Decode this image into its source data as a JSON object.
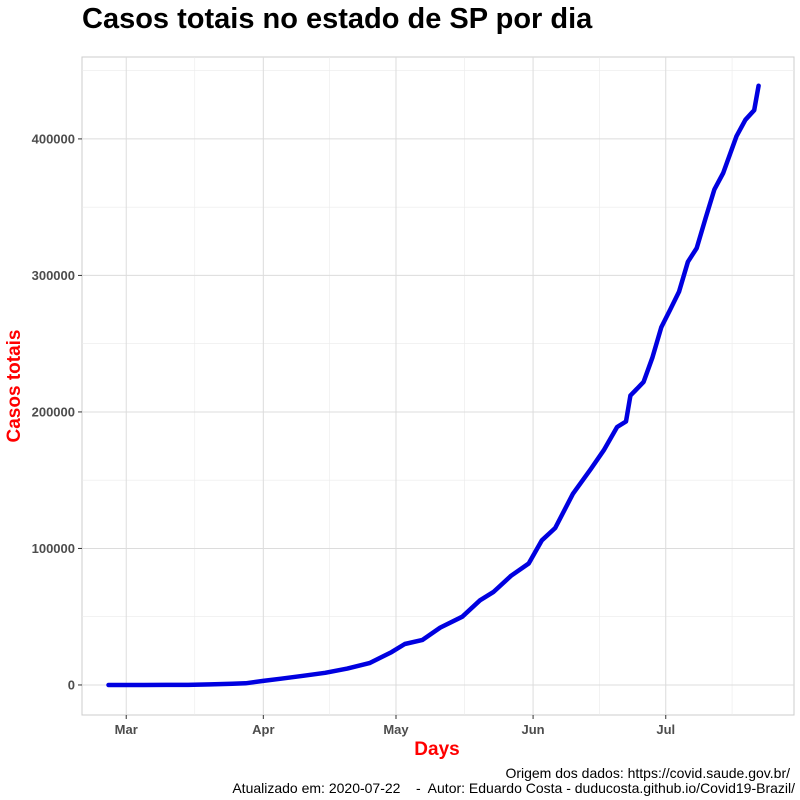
{
  "chart_data": {
    "type": "line",
    "title": "Casos totais no estado de SP por dia",
    "xlabel": "Days",
    "ylabel": "Casos totais",
    "x_type": "date",
    "xlim": [
      "2020-02-20",
      "2020-07-30"
    ],
    "ylim": [
      -22000,
      460000
    ],
    "x_ticks": [
      {
        "date": "2020-03-01",
        "label": "Mar"
      },
      {
        "date": "2020-04-01",
        "label": "Apr"
      },
      {
        "date": "2020-05-01",
        "label": "May"
      },
      {
        "date": "2020-06-01",
        "label": "Jun"
      },
      {
        "date": "2020-07-01",
        "label": "Jul"
      }
    ],
    "y_ticks": [
      {
        "value": 0,
        "label": "0"
      },
      {
        "value": 100000,
        "label": "100000"
      },
      {
        "value": 200000,
        "label": "200000"
      },
      {
        "value": 300000,
        "label": "300000"
      },
      {
        "value": 400000,
        "label": "400000"
      }
    ],
    "grid": true,
    "legend": "none",
    "series": [
      {
        "color": "#0000e0",
        "points": [
          [
            "2020-02-26",
            1
          ],
          [
            "2020-03-05",
            3
          ],
          [
            "2020-03-10",
            16
          ],
          [
            "2020-03-15",
            65
          ],
          [
            "2020-03-20",
            396
          ],
          [
            "2020-03-25",
            862
          ],
          [
            "2020-03-28",
            1223
          ],
          [
            "2020-04-01",
            2981
          ],
          [
            "2020-04-05",
            4620
          ],
          [
            "2020-04-10",
            6708
          ],
          [
            "2020-04-15",
            8895
          ],
          [
            "2020-04-20",
            12000
          ],
          [
            "2020-04-25",
            16000
          ],
          [
            "2020-04-30",
            24041
          ],
          [
            "2020-05-03",
            30000
          ],
          [
            "2020-05-07",
            33000
          ],
          [
            "2020-05-11",
            42000
          ],
          [
            "2020-05-16",
            50000
          ],
          [
            "2020-05-20",
            62000
          ],
          [
            "2020-05-23",
            68000
          ],
          [
            "2020-05-27",
            80000
          ],
          [
            "2020-05-31",
            89000
          ],
          [
            "2020-06-03",
            106000
          ],
          [
            "2020-06-06",
            115000
          ],
          [
            "2020-06-10",
            140000
          ],
          [
            "2020-06-14",
            158000
          ],
          [
            "2020-06-17",
            172000
          ],
          [
            "2020-06-20",
            189000
          ],
          [
            "2020-06-22",
            193000
          ],
          [
            "2020-06-23",
            212000
          ],
          [
            "2020-06-26",
            222000
          ],
          [
            "2020-06-28",
            240000
          ],
          [
            "2020-06-30",
            262000
          ],
          [
            "2020-07-02",
            275000
          ],
          [
            "2020-07-04",
            288000
          ],
          [
            "2020-07-06",
            310000
          ],
          [
            "2020-07-08",
            320000
          ],
          [
            "2020-07-10",
            342000
          ],
          [
            "2020-07-12",
            363000
          ],
          [
            "2020-07-14",
            375000
          ],
          [
            "2020-07-17",
            402000
          ],
          [
            "2020-07-19",
            414000
          ],
          [
            "2020-07-21",
            421000
          ],
          [
            "2020-07-22",
            439000
          ]
        ]
      }
    ]
  },
  "caption": {
    "source": "Origem dos dados: https://covid.saude.gov.br/",
    "author": "Atualizado em: 2020-07-22    -  Autor: Eduardo Costa - duducosta.github.io/Covid19-Brazil/"
  }
}
